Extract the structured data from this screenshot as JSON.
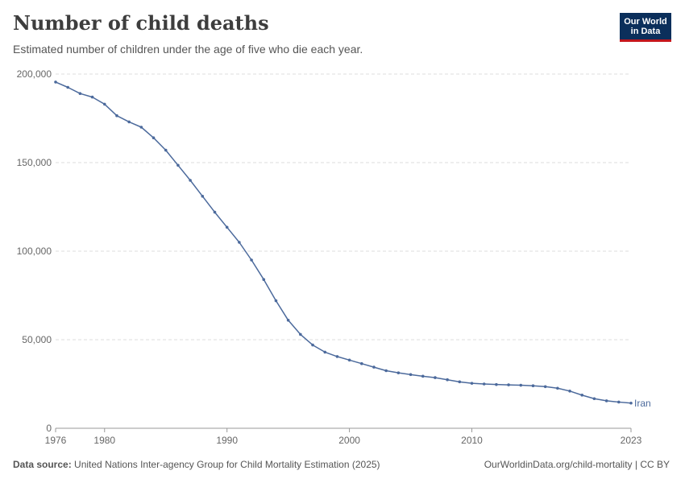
{
  "header": {
    "title": "Number of child deaths",
    "subtitle": "Estimated number of children under the age of five who die each year.",
    "logo_line1": "Our World",
    "logo_line2": "in Data"
  },
  "footer": {
    "source_label": "Data source:",
    "source_text": "United Nations Inter-agency Group for Child Mortality Estimation (2025)",
    "url_text": "OurWorldinData.org/child-mortality | CC BY"
  },
  "colors": {
    "line": "#4c6a9c",
    "grid": "#dddddd",
    "axis_text": "#666666"
  },
  "chart_data": {
    "type": "line",
    "title": "Number of child deaths",
    "xlabel": "",
    "ylabel": "",
    "xlim": [
      1976,
      2023
    ],
    "ylim": [
      0,
      200000
    ],
    "x_ticks": [
      1976,
      1980,
      1990,
      2000,
      2010,
      2023
    ],
    "y_ticks": [
      0,
      50000,
      100000,
      150000,
      200000
    ],
    "y_tick_labels": [
      "0",
      "50,000",
      "100,000",
      "150,000",
      "200,000"
    ],
    "series": [
      {
        "name": "Iran",
        "x": [
          1976,
          1977,
          1978,
          1979,
          1980,
          1981,
          1982,
          1983,
          1984,
          1985,
          1986,
          1987,
          1988,
          1989,
          1990,
          1991,
          1992,
          1993,
          1994,
          1995,
          1996,
          1997,
          1998,
          1999,
          2000,
          2001,
          2002,
          2003,
          2004,
          2005,
          2006,
          2007,
          2008,
          2009,
          2010,
          2011,
          2012,
          2013,
          2014,
          2015,
          2016,
          2017,
          2018,
          2019,
          2020,
          2021,
          2022,
          2023
        ],
        "values": [
          195500,
          192500,
          189000,
          187000,
          183000,
          176500,
          173000,
          170000,
          164000,
          157000,
          148500,
          140000,
          131000,
          122000,
          113500,
          105000,
          95000,
          84000,
          72000,
          61000,
          53000,
          47000,
          43000,
          40500,
          38500,
          36500,
          34500,
          32500,
          31300,
          30300,
          29400,
          28600,
          27400,
          26200,
          25400,
          25000,
          24700,
          24500,
          24300,
          24000,
          23500,
          22600,
          21000,
          18700,
          16700,
          15500,
          14800,
          14200
        ]
      }
    ]
  }
}
